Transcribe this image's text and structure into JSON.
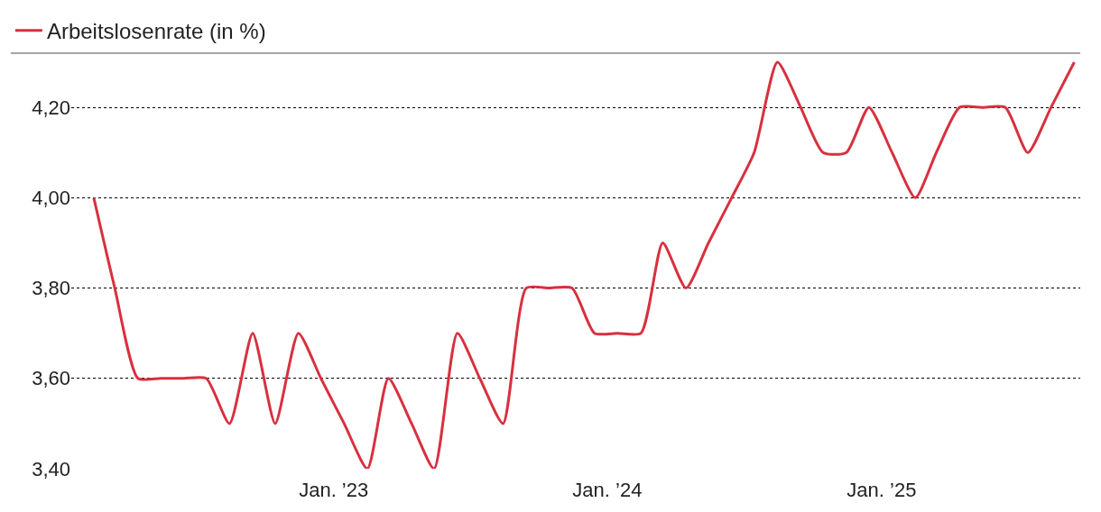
{
  "chart_data": {
    "type": "line",
    "x": [
      "2022-02-15",
      "2022-03-15",
      "2022-04-15",
      "2022-05-15",
      "2022-06-15",
      "2022-07-15",
      "2022-08-15",
      "2022-09-15",
      "2022-10-15",
      "2022-11-15",
      "2022-12-15",
      "2023-01-15",
      "2023-02-15",
      "2023-03-15",
      "2023-04-15",
      "2023-05-15",
      "2023-06-15",
      "2023-07-15",
      "2023-08-15",
      "2023-09-15",
      "2023-10-15",
      "2023-11-15",
      "2023-12-15",
      "2024-01-15",
      "2024-02-15",
      "2024-03-15",
      "2024-04-15",
      "2024-05-15",
      "2024-06-15",
      "2024-07-15",
      "2024-08-15",
      "2024-09-15",
      "2024-10-15",
      "2024-11-15",
      "2024-12-15",
      "2025-01-15",
      "2025-02-15",
      "2025-03-15",
      "2025-04-15",
      "2025-05-15",
      "2025-06-15",
      "2025-07-15",
      "2025-08-15",
      "2025-09-15"
    ],
    "series": [
      {
        "name": "Arbeitslosenrate (in %)",
        "color": "#d8303f",
        "values": [
          4.0,
          3.8,
          3.6,
          3.6,
          3.6,
          3.6,
          3.5,
          3.7,
          3.5,
          3.7,
          3.6,
          3.5,
          3.4,
          3.6,
          3.5,
          3.4,
          3.7,
          3.6,
          3.5,
          3.8,
          3.8,
          3.8,
          3.7,
          3.7,
          3.7,
          3.9,
          3.8,
          3.9,
          4.0,
          4.1,
          4.3,
          4.2,
          4.1,
          4.1,
          4.2,
          4.1,
          4.0,
          4.1,
          4.2,
          4.2,
          4.2,
          4.1,
          4.2,
          4.3
        ]
      }
    ],
    "xlim": [
      "2022-01-16",
      "2025-09-23"
    ],
    "xticks": [
      {
        "value": "2023-01-01",
        "label": "Jan. ’23"
      },
      {
        "value": "2024-01-01",
        "label": "Jan. ’24"
      },
      {
        "value": "2025-01-01",
        "label": "Jan. ’25"
      }
    ],
    "ylim": [
      3.4,
      4.32
    ],
    "yticks": [
      {
        "value": 3.4,
        "label": "3,40"
      },
      {
        "value": 3.6,
        "label": "3,60"
      },
      {
        "value": 3.8,
        "label": "3,80"
      },
      {
        "value": 4.0,
        "label": "4,00"
      },
      {
        "value": 4.2,
        "label": "4,20"
      }
    ],
    "grid": "y",
    "legend": "top left",
    "marker": "none",
    "line_style": "solid"
  }
}
